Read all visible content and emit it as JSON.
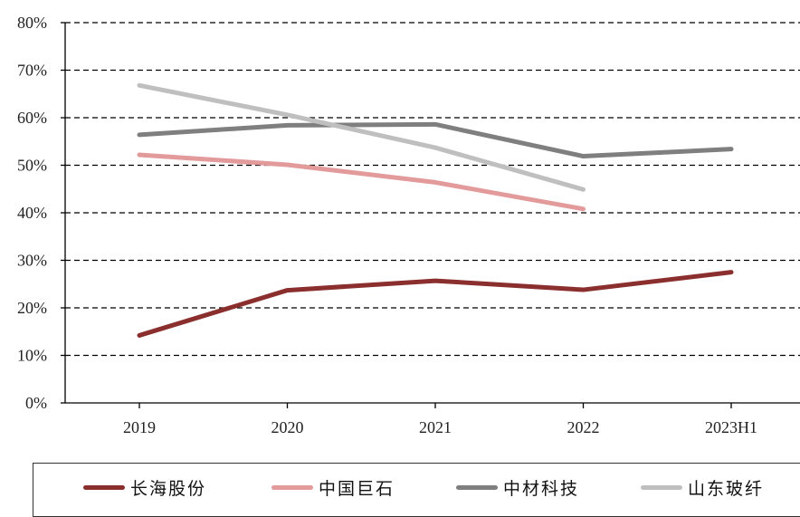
{
  "chart_data": {
    "type": "line",
    "categories": [
      "2019",
      "2020",
      "2021",
      "2022",
      "2023H1"
    ],
    "ylim": [
      0,
      80
    ],
    "yticks": [
      "0%",
      "10%",
      "20%",
      "30%",
      "40%",
      "50%",
      "60%",
      "70%",
      "80%"
    ],
    "grid": true,
    "legend_position": "bottom",
    "series": [
      {
        "name": "长海股份",
        "color": "#8B2E2E",
        "values": [
          14.2,
          23.7,
          25.7,
          23.8,
          27.5
        ]
      },
      {
        "name": "中国巨石",
        "color": "#E39A9A",
        "values": [
          52.2,
          50.1,
          46.4,
          40.8,
          null
        ]
      },
      {
        "name": "中材科技",
        "color": "#7F7F7F",
        "values": [
          56.4,
          58.4,
          58.6,
          51.9,
          53.4
        ]
      },
      {
        "name": "山东玻纤",
        "color": "#BFBFBF",
        "values": [
          66.8,
          60.6,
          53.7,
          44.9,
          null
        ]
      }
    ]
  }
}
